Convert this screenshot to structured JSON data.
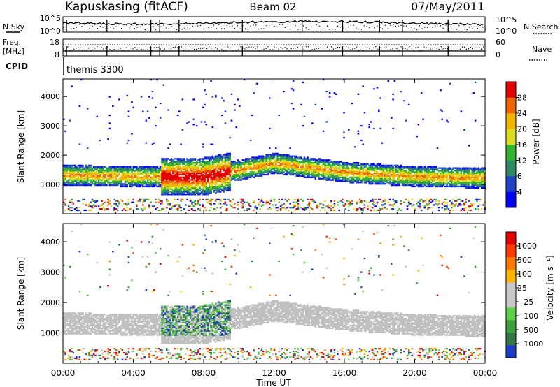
{
  "header": {
    "station": "Kapuskasing (fitACF)",
    "beam": "Beam 02",
    "date": "07/May/2011"
  },
  "top_panels": {
    "nsky_label": "N.Sky",
    "nsearch_label": "N.Search",
    "noise_ticks_left": [
      "10^5",
      "10^0"
    ],
    "noise_ticks_right": [
      "10^5",
      "10^0"
    ],
    "freq_label_1": "Freq.",
    "freq_label_2": "[MHz]",
    "freq_ticks": [
      "18",
      "8"
    ],
    "nave_label": "Nave",
    "nave_ticks": [
      "60",
      "0"
    ],
    "cpid_label": "CPID",
    "cpid_value": "themis 3300"
  },
  "colors": {
    "power_scale": [
      "#0000ff",
      "#1f40c8",
      "#2d8c64",
      "#32b432",
      "#dcdc1e",
      "#f0b400",
      "#f06400",
      "#e60000"
    ],
    "velocity_scale": [
      "#1e3cc8",
      "#327846",
      "#3ca03c",
      "#5ad246",
      "#c8c8c8",
      "#c8c8c8",
      "#ffb400",
      "#ff7800",
      "#ff3c00",
      "#e60000"
    ],
    "ground_scatter": "#c0c0c0"
  },
  "chart_data": [
    {
      "type": "heatmap",
      "quantity": "Power",
      "xlabel": "Time UT",
      "ylabel": "Slant Range [km]",
      "xlim": [
        0,
        24
      ],
      "ylim": [
        0,
        4600
      ],
      "x_tick_labels": [
        "00:00",
        "04:00",
        "08:00",
        "12:00",
        "16:00",
        "20:00",
        "00:00"
      ],
      "y_tick_labels": [
        "1000",
        "2000",
        "3000",
        "4000"
      ],
      "colorbar": {
        "label": "Power [dB]",
        "tick_labels": [
          "4",
          "8",
          "12",
          "16",
          "20",
          "24",
          "28"
        ],
        "range": [
          0,
          30
        ]
      },
      "features": [
        {
          "region": "main_band",
          "time_start_h": 0,
          "time_end_h": 24,
          "range_center_km": [
            1300,
            1250,
            1250,
            1700,
            1400,
            1250,
            1200
          ],
          "peak_power_db": 28
        },
        {
          "region": "enhanced_echoes",
          "time_start_h": 5.5,
          "time_end_h": 9.5,
          "range_km": [
            900,
            2100
          ]
        },
        {
          "region": "near_range_noise",
          "range_km": [
            100,
            500
          ]
        }
      ]
    },
    {
      "type": "heatmap",
      "quantity": "Velocity",
      "xlabel": "Time UT",
      "ylabel": "Slant Range [km]",
      "xlim": [
        0,
        24
      ],
      "ylim": [
        0,
        4600
      ],
      "x_tick_labels": [
        "00:00",
        "04:00",
        "08:00",
        "12:00",
        "16:00",
        "20:00",
        "00:00"
      ],
      "y_tick_labels": [
        "1000",
        "2000",
        "3000",
        "4000"
      ],
      "colorbar": {
        "label": "Velocity [m s⁻¹]",
        "tick_labels": [
          "1000",
          "500",
          "100",
          "25",
          "−25",
          "−100",
          "−500",
          "−1000"
        ]
      },
      "features": [
        {
          "region": "ground_scatter",
          "color": "grey",
          "time_start_h": 0,
          "time_end_h": 24
        },
        {
          "region": "positive_velocity_patch",
          "time_start_h": 5.5,
          "time_end_h": 9.5,
          "range_km": [
            900,
            2000
          ]
        }
      ]
    }
  ]
}
